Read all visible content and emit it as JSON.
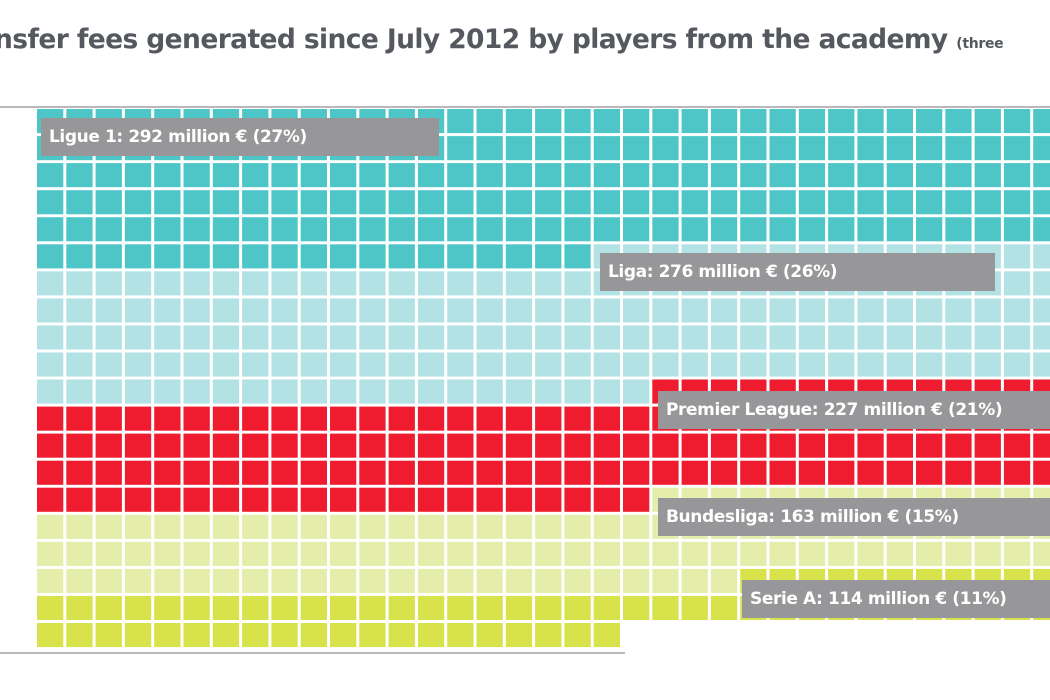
{
  "title": {
    "main": "nsfer fees generated since July 2012 by players from the academy",
    "sub": "(three"
  },
  "chart_data": {
    "type": "waffle",
    "title": "...nsfer fees generated since July 2012 by players from the academy (three...",
    "unit": "million €",
    "grid": {
      "rows": 20,
      "visible_columns": 35,
      "fill_order": "row-major, left-to-right"
    },
    "series": [
      {
        "name": "Ligue 1",
        "value": 292,
        "percent": 27,
        "color": "#4ec6c8",
        "label": "Ligue 1: 292 million € (27%)"
      },
      {
        "name": "Liga",
        "value": 276,
        "percent": 26,
        "color": "#b2e2e3",
        "label": "Liga: 276 million € (26%)"
      },
      {
        "name": "Premier League",
        "value": 227,
        "percent": 21,
        "color": "#ee1c2e",
        "label": "Premier League: 227 million € (21%)"
      },
      {
        "name": "Bundesliga",
        "value": 163,
        "percent": 15,
        "color": "#e4eeaa",
        "label": "Bundesliga: 163 million € (15%)"
      },
      {
        "name": "Serie A",
        "value": 114,
        "percent": 11,
        "color": "#d8e24a",
        "label": "Serie A: 114 million € (11%)"
      }
    ],
    "segment_boundaries": [
      {
        "series": "Ligue 1",
        "ends_at_row": 5,
        "ends_before_col": 19
      },
      {
        "series": "Liga",
        "ends_at_row": 10,
        "ends_before_col": 21
      },
      {
        "series": "Premier League",
        "ends_at_row": 14,
        "ends_before_col": 21
      },
      {
        "series": "Bundesliga",
        "ends_at_row": 17,
        "ends_before_col": 24
      },
      {
        "series": "Serie A",
        "ends_at_row": 19,
        "ends_before_col": 20
      }
    ]
  }
}
